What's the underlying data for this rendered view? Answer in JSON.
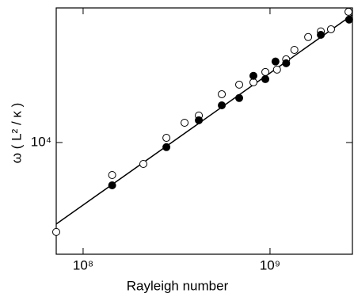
{
  "chart_data": {
    "type": "scatter",
    "x_label": "Rayleigh number",
    "y_label": "ω ( L² / κ )",
    "xscale": "log",
    "yscale": "log",
    "xlim": [
      71800000,
      2760000000
    ],
    "ylim": [
      3740,
      32700
    ],
    "xticks": [
      {
        "value": 100000000,
        "label": "10⁸"
      },
      {
        "value": 1000000000,
        "label": "10⁹"
      }
    ],
    "yticks": [
      {
        "value": 10000,
        "label": "10⁴"
      }
    ],
    "color": "#000000",
    "series": [
      {
        "marker": "open",
        "x": [
          71800000,
          143000000,
          210000000,
          279000000,
          349000000,
          416000000,
          552000000,
          684000000,
          815000000,
          944000000,
          1090000000,
          1220000000,
          1350000000,
          1600000000,
          1870000000,
          2120000000,
          2630000000
        ],
        "values": [
          4550,
          7510,
          8280,
          10420,
          11900,
          12680,
          15300,
          16640,
          16990,
          18600,
          19000,
          20800,
          22600,
          25300,
          26600,
          27100,
          31600
        ]
      },
      {
        "marker": "filled",
        "x": [
          143000000,
          279000000,
          416000000,
          552000000,
          684000000,
          815000000,
          944000000,
          1070000000,
          1220000000,
          1870000000,
          2650000000
        ],
        "values": [
          6860,
          9600,
          12160,
          13870,
          14790,
          17990,
          17470,
          20400,
          20090,
          25800,
          29500
        ]
      }
    ],
    "fit": {
      "x": [
        71800000,
        2760000000
      ],
      "values": [
        4880,
        30760
      ]
    }
  }
}
